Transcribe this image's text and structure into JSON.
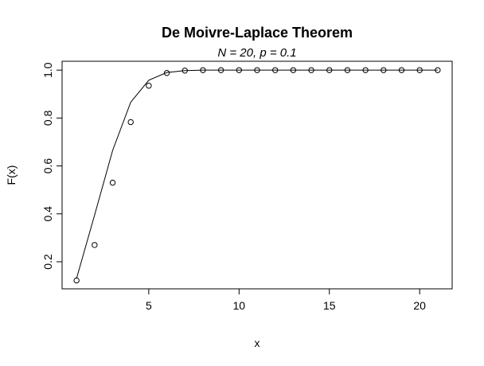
{
  "chart_data": {
    "type": "scatter",
    "title": "De Moivre-Laplace Theorem",
    "subtitle": "N = 20,  p = 0.1",
    "xlabel": "x",
    "ylabel": "F(x)",
    "xlim": [
      0.2,
      21.8
    ],
    "ylim": [
      0.087,
      1.037
    ],
    "x_ticks": [
      5,
      10,
      15,
      20
    ],
    "y_ticks": [
      0.2,
      0.4,
      0.6,
      0.8,
      1.0
    ],
    "x_tick_labels": [
      "5",
      "10",
      "15",
      "20"
    ],
    "y_tick_labels": [
      "0.2",
      "0.4",
      "0.6",
      "0.8",
      "1.0"
    ],
    "grid": false,
    "series": [
      {
        "kind": "points",
        "marker": "open-circle",
        "x": [
          1,
          2,
          3,
          4,
          5,
          6,
          7,
          8,
          9,
          10,
          11,
          12,
          13,
          14,
          15,
          16,
          17,
          18,
          19,
          20,
          21
        ],
        "y": [
          0.122,
          0.27,
          0.53,
          0.783,
          0.935,
          0.988,
          0.998,
          1.0,
          1.0,
          1.0,
          1.0,
          1.0,
          1.0,
          1.0,
          1.0,
          1.0,
          1.0,
          1.0,
          1.0,
          1.0,
          1.0
        ]
      },
      {
        "kind": "line",
        "x": [
          1,
          2,
          3,
          4,
          5,
          6,
          7,
          8,
          9,
          10,
          11,
          12,
          13,
          14,
          15,
          16,
          17,
          18,
          19,
          20,
          21
        ],
        "y": [
          0.13,
          0.395,
          0.665,
          0.866,
          0.958,
          0.99,
          0.998,
          1.0,
          1.0,
          1.0,
          1.0,
          1.0,
          1.0,
          1.0,
          1.0,
          1.0,
          1.0,
          1.0,
          1.0,
          1.0,
          1.0
        ]
      }
    ]
  }
}
